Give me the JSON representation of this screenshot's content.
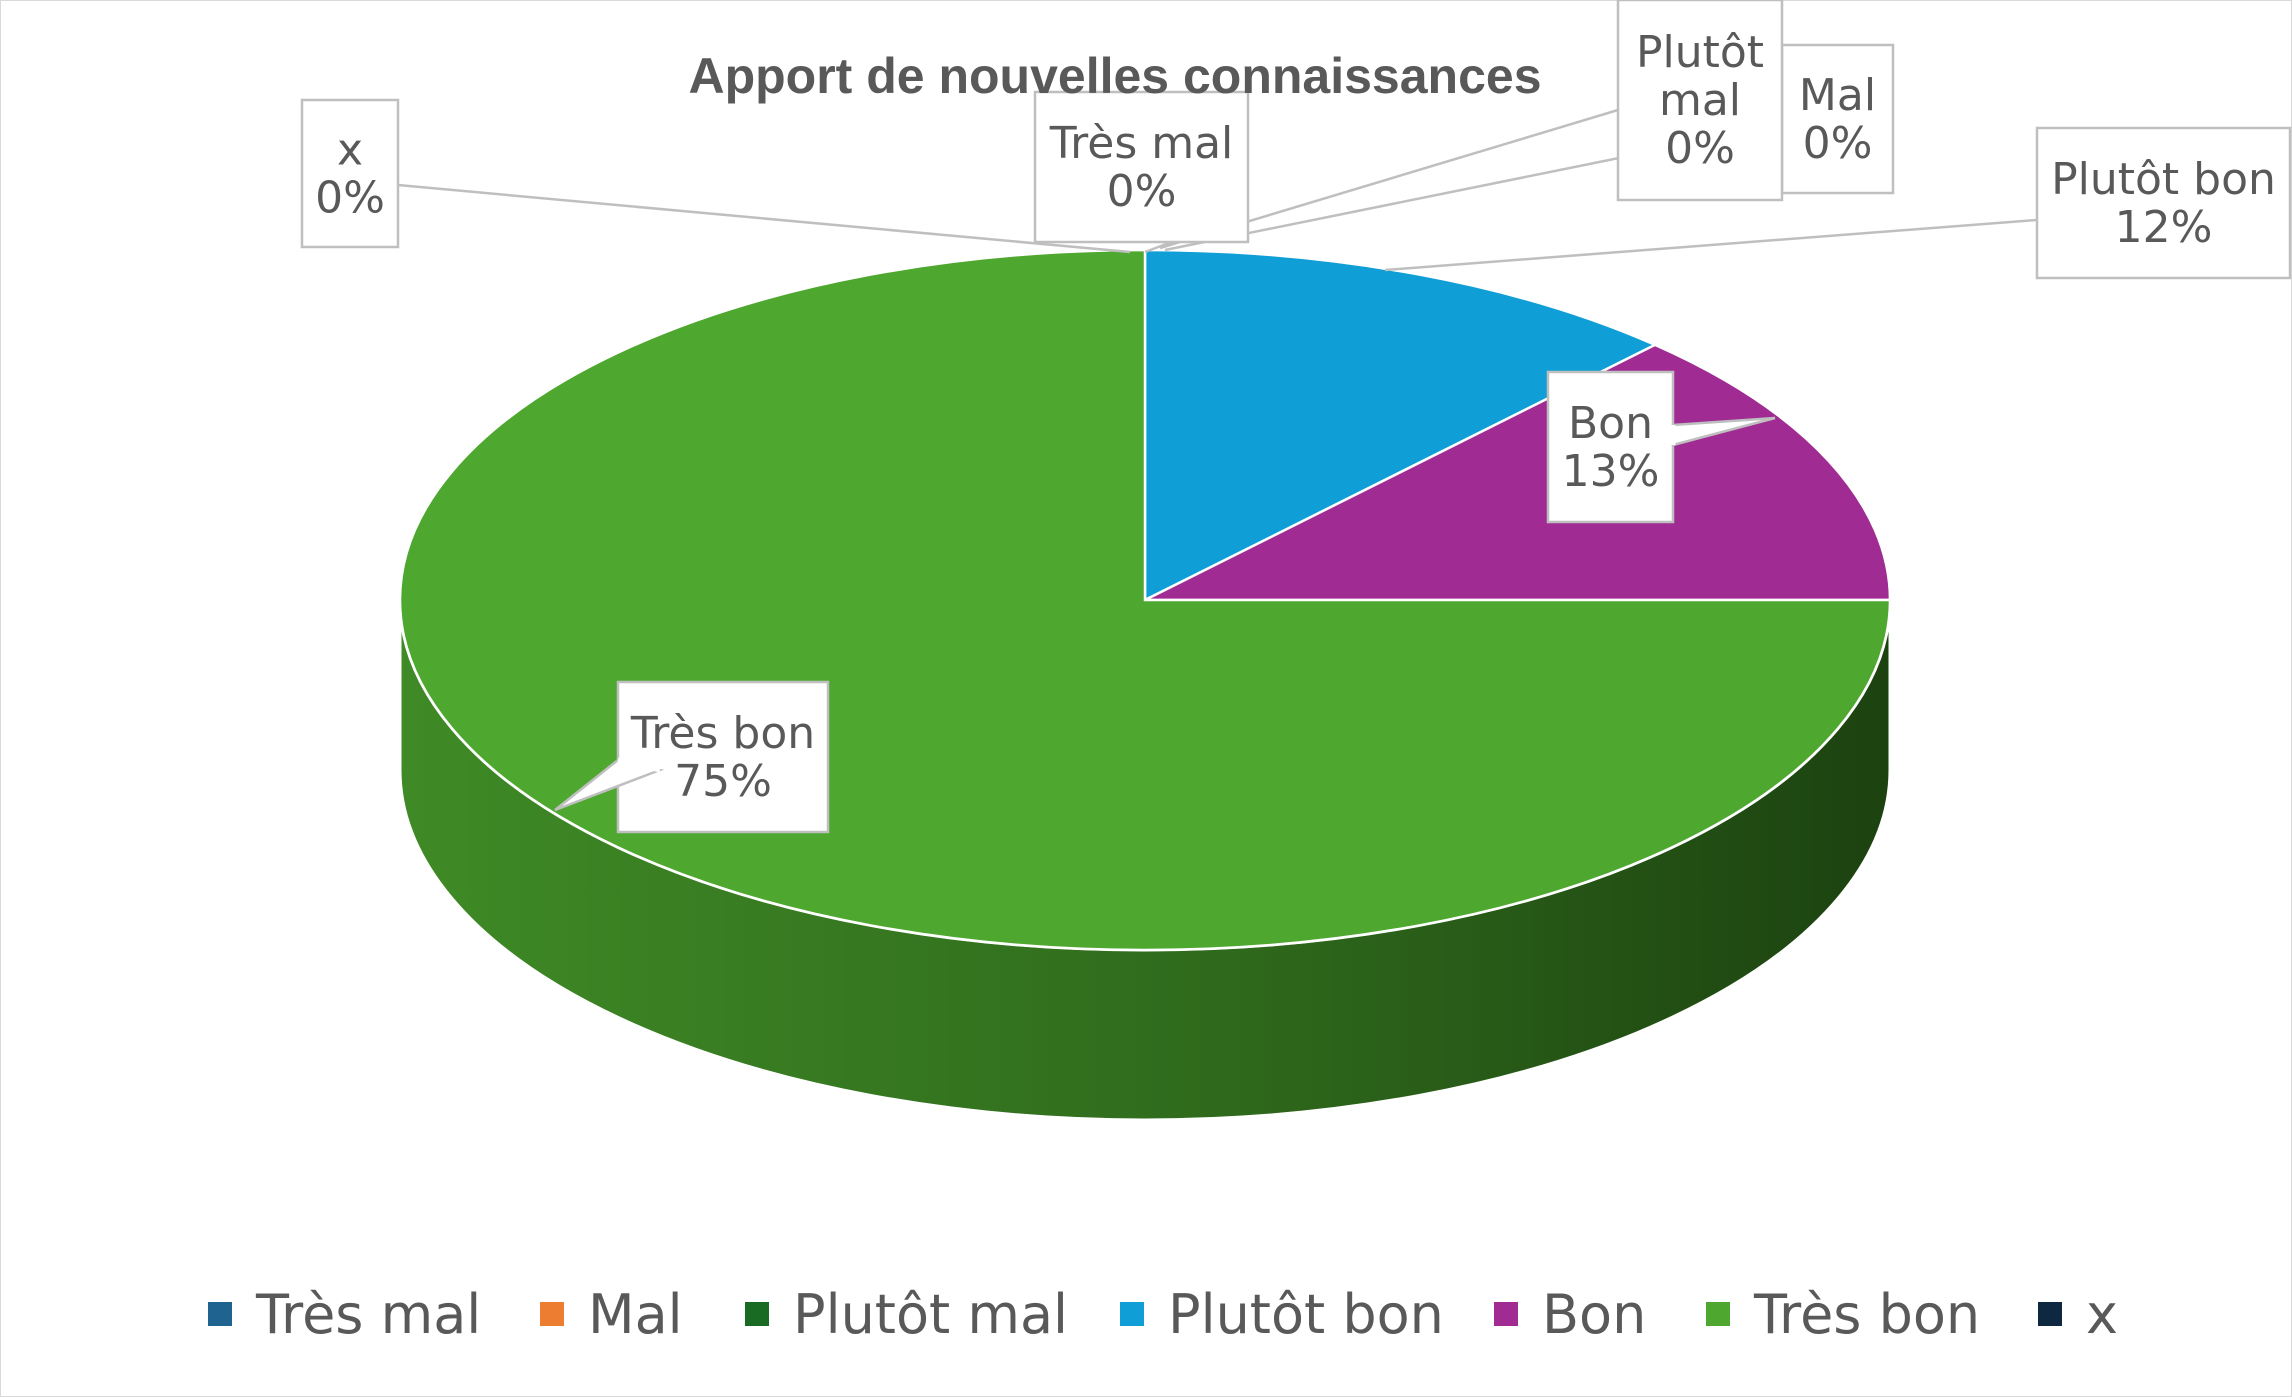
{
  "chart_data": {
    "type": "pie",
    "title": "Apport de nouvelles connaissances",
    "three_d": true,
    "categories": [
      "Très mal",
      "Mal",
      "Plutôt mal",
      "Plutôt bon",
      "Bon",
      "Très bon",
      "x"
    ],
    "values": [
      0,
      0,
      0,
      12,
      13,
      75,
      0
    ],
    "value_labels": [
      "0%",
      "0%",
      "0%",
      "12%",
      "13%",
      "75%",
      "0%"
    ],
    "colors": [
      "#1f6391",
      "#ed7d31",
      "#196b24",
      "#0f9ed5",
      "#a02b93",
      "#4ea72e",
      "#0e2841"
    ],
    "legend_position": "bottom"
  }
}
